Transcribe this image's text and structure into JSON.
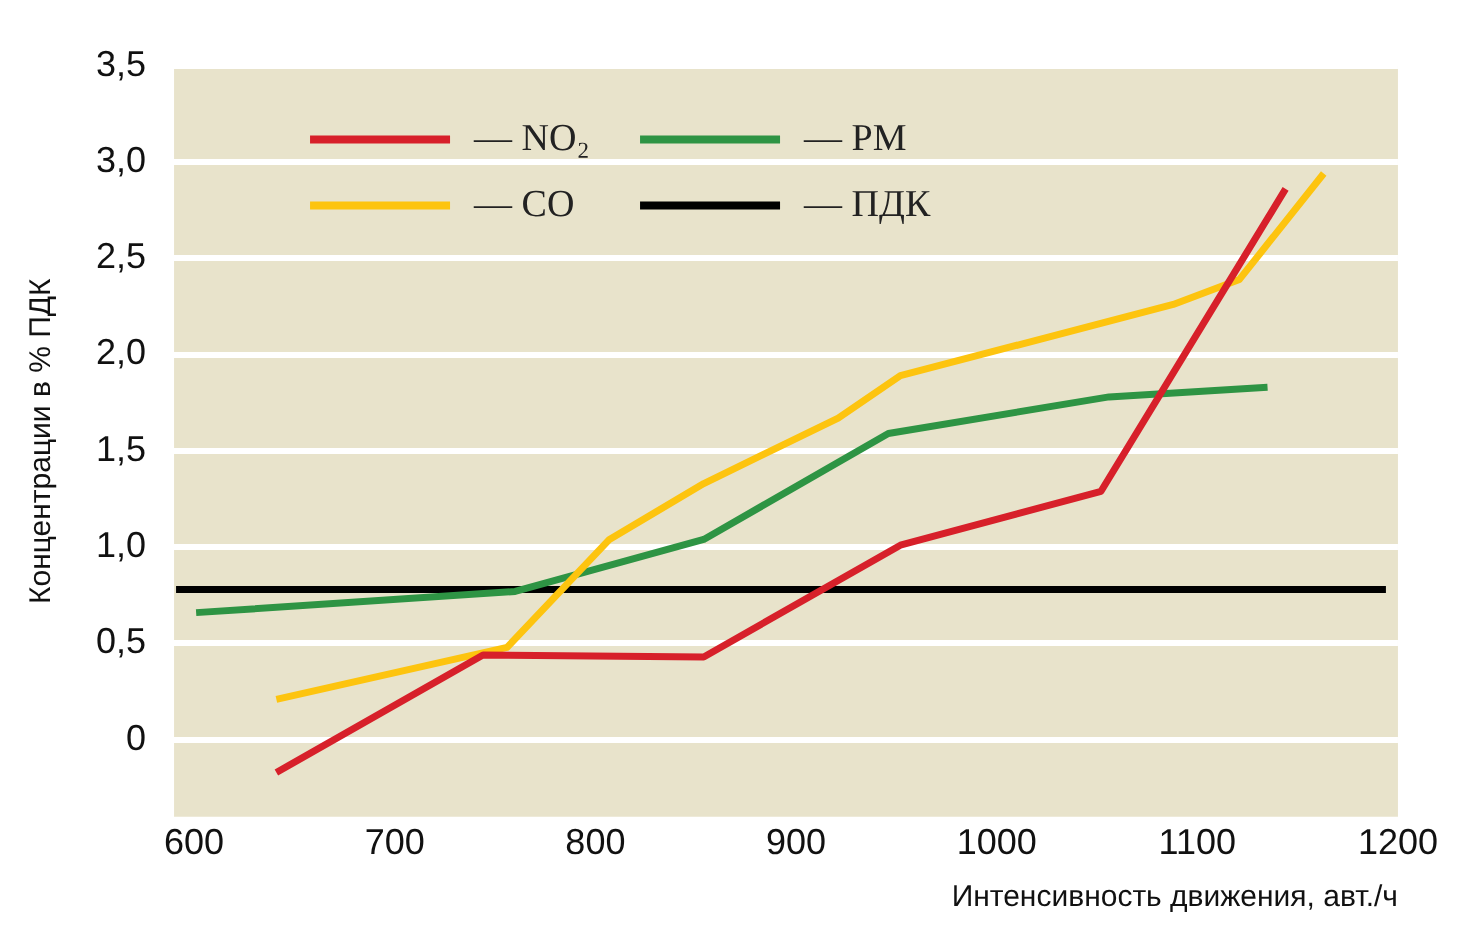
{
  "chart_data": {
    "type": "line",
    "xlabel": "Интенсивность движения, авт./ч",
    "ylabel": "Концентрации в % ПДК",
    "xlim": [
      590,
      1200
    ],
    "xticks": [
      600,
      700,
      800,
      900,
      1000,
      1100,
      1200
    ],
    "ylim": [
      -0.4,
      3.5
    ],
    "yticks": [
      {
        "value": 0,
        "label": "0"
      },
      {
        "value": 0.5,
        "label": "0,5"
      },
      {
        "value": 1,
        "label": "1,0"
      },
      {
        "value": 1.5,
        "label": "1,5"
      },
      {
        "value": 2,
        "label": "2,0"
      },
      {
        "value": 2.5,
        "label": "2,5"
      },
      {
        "value": 3,
        "label": "3,0"
      },
      {
        "value": 3.5,
        "label": "3,5"
      }
    ],
    "grid": "y",
    "legend": "top left",
    "marker": "none",
    "line_style": "solid",
    "series": [
      {
        "name": "— NO₂",
        "color": "#d7202a",
        "x": [
          641,
          744,
          854,
          952,
          1052,
          1144
        ],
        "values": [
          -0.17,
          0.44,
          0.43,
          1.01,
          1.29,
          2.86
        ]
      },
      {
        "name": "— CO",
        "color": "#fdc40f",
        "x": [
          641,
          756,
          807,
          854,
          921,
          952,
          1088,
          1121,
          1163
        ],
        "values": [
          0.21,
          0.48,
          1.04,
          1.33,
          1.67,
          1.89,
          2.26,
          2.39,
          2.94
        ]
      },
      {
        "name": "— PM",
        "color": "#2e9444",
        "x": [
          601,
          760,
          854,
          946,
          1056,
          1135
        ],
        "values": [
          0.66,
          0.77,
          1.04,
          1.59,
          1.78,
          1.83
        ]
      },
      {
        "name": "— ПДК",
        "color": "#000000",
        "x": [
          591,
          1194
        ],
        "values": [
          0.78,
          0.78
        ]
      }
    ]
  }
}
